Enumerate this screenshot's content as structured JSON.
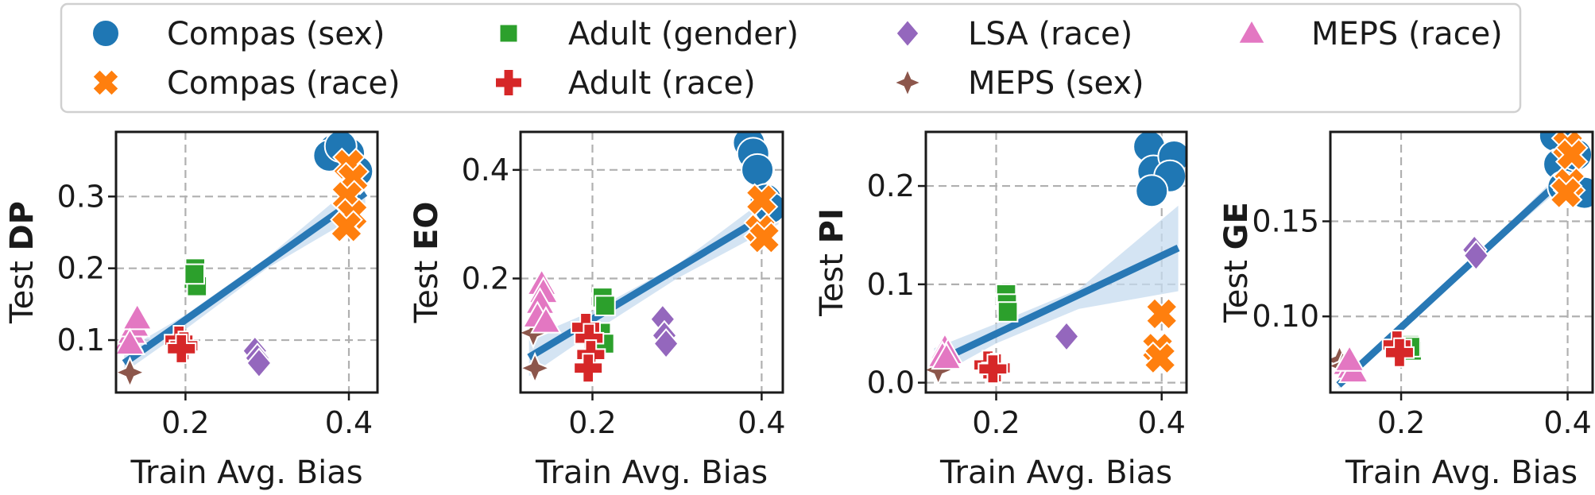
{
  "legend": {
    "placement": "top-center",
    "entries": [
      {
        "label": "Compas (sex)",
        "marker": "circle",
        "color": "#1f77b4"
      },
      {
        "label": "Compas (race)",
        "marker": "x",
        "color": "#ff7f0e"
      },
      {
        "label": "Adult (gender)",
        "marker": "square",
        "color": "#2ca02c"
      },
      {
        "label": "Adult (race)",
        "marker": "plus",
        "color": "#d62728"
      },
      {
        "label": "LSA (race)",
        "marker": "diamond",
        "color": "#9467bd"
      },
      {
        "label": "MEPS (sex)",
        "marker": "star4",
        "color": "#8c564b"
      },
      {
        "label": "MEPS (race)",
        "marker": "triangle",
        "color": "#e377c2"
      }
    ]
  },
  "style": {
    "regression_color": "#2878b5",
    "band_color": "#c6dbef",
    "grid": true,
    "grid_style": "dashed"
  },
  "chart_data": [
    {
      "type": "scatter",
      "xlabel": "Train Avg. Bias",
      "ylabel_prefix": "Test ",
      "ylabel_bold": "DP",
      "xlim": [
        0.115,
        0.435
      ],
      "ylim": [
        0.027,
        0.39
      ],
      "xticks": [
        0.2,
        0.4
      ],
      "xtick_labels": [
        "0.2",
        "0.4"
      ],
      "yticks": [
        0.1,
        0.2,
        0.3
      ],
      "ytick_labels": [
        "0.1",
        "0.2",
        "0.3"
      ],
      "regression": {
        "x": [
          0.125,
          0.42
        ],
        "y": [
          0.068,
          0.305
        ],
        "band": [
          [
            0.125,
            0.055,
            0.085
          ],
          [
            0.2,
            0.115,
            0.135
          ],
          [
            0.3,
            0.2,
            0.215
          ],
          [
            0.42,
            0.28,
            0.33
          ]
        ]
      },
      "series": [
        {
          "name": "Compas (sex)",
          "points": [
            [
              0.382,
              0.365
            ],
            [
              0.4,
              0.36
            ],
            [
              0.41,
              0.335
            ],
            [
              0.376,
              0.357
            ],
            [
              0.39,
              0.37
            ]
          ]
        },
        {
          "name": "Compas (race)",
          "points": [
            [
              0.4,
              0.345
            ],
            [
              0.405,
              0.325
            ],
            [
              0.398,
              0.3
            ],
            [
              0.404,
              0.275
            ],
            [
              0.397,
              0.258
            ]
          ]
        },
        {
          "name": "Adult (gender)",
          "points": [
            [
              0.212,
              0.2
            ],
            [
              0.21,
              0.185
            ],
            [
              0.214,
              0.175
            ],
            [
              0.211,
              0.192
            ]
          ]
        },
        {
          "name": "Adult (race)",
          "points": [
            [
              0.192,
              0.1
            ],
            [
              0.198,
              0.092
            ],
            [
              0.195,
              0.088
            ]
          ]
        },
        {
          "name": "LSA (race)",
          "points": [
            [
              0.285,
              0.085
            ],
            [
              0.288,
              0.075
            ],
            [
              0.29,
              0.068
            ]
          ]
        },
        {
          "name": "MEPS (sex)",
          "points": [
            [
              0.132,
              0.055
            ]
          ]
        },
        {
          "name": "MEPS (race)",
          "points": [
            [
              0.13,
              0.1
            ],
            [
              0.134,
              0.11
            ],
            [
              0.138,
              0.12
            ],
            [
              0.141,
              0.13
            ],
            [
              0.132,
              0.095
            ]
          ]
        }
      ]
    },
    {
      "type": "scatter",
      "xlabel": "Train Avg. Bias",
      "ylabel_prefix": "Test ",
      "ylabel_bold": "EO",
      "xlim": [
        0.115,
        0.425
      ],
      "ylim": [
        -0.01,
        0.47
      ],
      "xticks": [
        0.2,
        0.4
      ],
      "xtick_labels": [
        "0.2",
        "0.4"
      ],
      "yticks": [
        0.2,
        0.4
      ],
      "ytick_labels": [
        "0.2",
        "0.4"
      ],
      "regression": {
        "x": [
          0.125,
          0.42
        ],
        "y": [
          0.055,
          0.33
        ],
        "band": [
          [
            0.125,
            0.02,
            0.09
          ],
          [
            0.2,
            0.1,
            0.14
          ],
          [
            0.3,
            0.2,
            0.225
          ],
          [
            0.42,
            0.3,
            0.365
          ]
        ]
      },
      "series": [
        {
          "name": "Compas (sex)",
          "points": [
            [
              0.385,
              0.45
            ],
            [
              0.39,
              0.43
            ],
            [
              0.395,
              0.4
            ],
            [
              0.405,
              0.345
            ],
            [
              0.41,
              0.33
            ]
          ]
        },
        {
          "name": "Compas (race)",
          "points": [
            [
              0.4,
              0.345
            ],
            [
              0.398,
              0.29
            ],
            [
              0.403,
              0.275
            ]
          ]
        },
        {
          "name": "Adult (gender)",
          "points": [
            [
              0.212,
              0.165
            ],
            [
              0.215,
              0.15
            ],
            [
              0.21,
              0.1
            ],
            [
              0.214,
              0.08
            ]
          ]
        },
        {
          "name": "Adult (race)",
          "points": [
            [
              0.192,
              0.11
            ],
            [
              0.196,
              0.09
            ],
            [
              0.198,
              0.06
            ],
            [
              0.195,
              0.035
            ]
          ]
        },
        {
          "name": "LSA (race)",
          "points": [
            [
              0.283,
              0.125
            ],
            [
              0.285,
              0.095
            ],
            [
              0.287,
              0.08
            ]
          ]
        },
        {
          "name": "MEPS (sex)",
          "points": [
            [
              0.13,
              0.1
            ],
            [
              0.132,
              0.035
            ]
          ]
        },
        {
          "name": "MEPS (race)",
          "points": [
            [
              0.14,
              0.19
            ],
            [
              0.142,
              0.175
            ],
            [
              0.138,
              0.155
            ],
            [
              0.135,
              0.13
            ],
            [
              0.145,
              0.12
            ]
          ]
        }
      ]
    },
    {
      "type": "scatter",
      "xlabel": "Train Avg. Bias",
      "ylabel_prefix": "Test ",
      "ylabel_bold": "PI",
      "xlim": [
        0.115,
        0.43
      ],
      "ylim": [
        -0.01,
        0.255
      ],
      "xticks": [
        0.2,
        0.4
      ],
      "xtick_labels": [
        "0.2",
        "0.4"
      ],
      "yticks": [
        0.0,
        0.1,
        0.2
      ],
      "ytick_labels": [
        "0.0",
        "0.1",
        "0.2"
      ],
      "regression": {
        "x": [
          0.125,
          0.42
        ],
        "y": [
          0.02,
          0.137
        ],
        "band": [
          [
            0.125,
            0.005,
            0.035
          ],
          [
            0.2,
            0.04,
            0.06
          ],
          [
            0.3,
            0.075,
            0.095
          ],
          [
            0.42,
            0.093,
            0.18
          ]
        ]
      },
      "series": [
        {
          "name": "Compas (sex)",
          "points": [
            [
              0.385,
              0.24
            ],
            [
              0.39,
              0.215
            ],
            [
              0.415,
              0.23
            ],
            [
              0.41,
              0.21
            ],
            [
              0.388,
              0.195
            ]
          ]
        },
        {
          "name": "Compas (race)",
          "points": [
            [
              0.4,
              0.07
            ],
            [
              0.395,
              0.035
            ],
            [
              0.398,
              0.025
            ]
          ]
        },
        {
          "name": "Adult (gender)",
          "points": [
            [
              0.212,
              0.09
            ],
            [
              0.213,
              0.08
            ],
            [
              0.214,
              0.072
            ]
          ]
        },
        {
          "name": "Adult (race)",
          "points": [
            [
              0.19,
              0.018
            ],
            [
              0.2,
              0.015
            ],
            [
              0.196,
              0.014
            ]
          ]
        },
        {
          "name": "LSA (race)",
          "points": [
            [
              0.285,
              0.047
            ]
          ]
        },
        {
          "name": "MEPS (sex)",
          "points": [
            [
              0.13,
              0.013
            ]
          ]
        },
        {
          "name": "MEPS (race)",
          "points": [
            [
              0.138,
              0.035
            ],
            [
              0.142,
              0.03
            ],
            [
              0.135,
              0.027
            ],
            [
              0.14,
              0.025
            ]
          ]
        }
      ]
    },
    {
      "type": "scatter",
      "xlabel": "Train Avg. Bias",
      "ylabel_prefix": "Test ",
      "ylabel_bold": "GE",
      "xlim": [
        0.115,
        0.43
      ],
      "ylim": [
        0.06,
        0.197
      ],
      "xticks": [
        0.2,
        0.4
      ],
      "xtick_labels": [
        "0.2",
        "0.4"
      ],
      "yticks": [
        0.1,
        0.15
      ],
      "ytick_labels": [
        "0.10",
        "0.15"
      ],
      "regression": {
        "x": [
          0.125,
          0.42
        ],
        "y": [
          0.064,
          0.183
        ],
        "band": [
          [
            0.125,
            0.062,
            0.066
          ],
          [
            0.2,
            0.093,
            0.096
          ],
          [
            0.3,
            0.133,
            0.136
          ],
          [
            0.42,
            0.178,
            0.188
          ]
        ]
      },
      "series": [
        {
          "name": "Compas (sex)",
          "points": [
            [
              0.385,
              0.195
            ],
            [
              0.39,
              0.18
            ],
            [
              0.395,
              0.168
            ],
            [
              0.42,
              0.165
            ],
            [
              0.41,
              0.185
            ]
          ]
        },
        {
          "name": "Compas (race)",
          "points": [
            [
              0.4,
              0.19
            ],
            [
              0.405,
              0.185
            ],
            [
              0.402,
              0.17
            ],
            [
              0.398,
              0.165
            ]
          ]
        },
        {
          "name": "Adult (gender)",
          "points": [
            [
              0.21,
              0.085
            ],
            [
              0.213,
              0.082
            ],
            [
              0.211,
              0.084
            ]
          ]
        },
        {
          "name": "Adult (race)",
          "points": [
            [
              0.195,
              0.085
            ],
            [
              0.198,
              0.081
            ]
          ]
        },
        {
          "name": "LSA (race)",
          "points": [
            [
              0.288,
              0.135
            ],
            [
              0.29,
              0.132
            ]
          ]
        },
        {
          "name": "MEPS (sex)",
          "points": [
            [
              0.126,
              0.077
            ],
            [
              0.13,
              0.074
            ]
          ]
        },
        {
          "name": "MEPS (race)",
          "points": [
            [
              0.135,
              0.075
            ],
            [
              0.14,
              0.073
            ],
            [
              0.143,
              0.071
            ],
            [
              0.138,
              0.077
            ]
          ]
        }
      ]
    }
  ]
}
